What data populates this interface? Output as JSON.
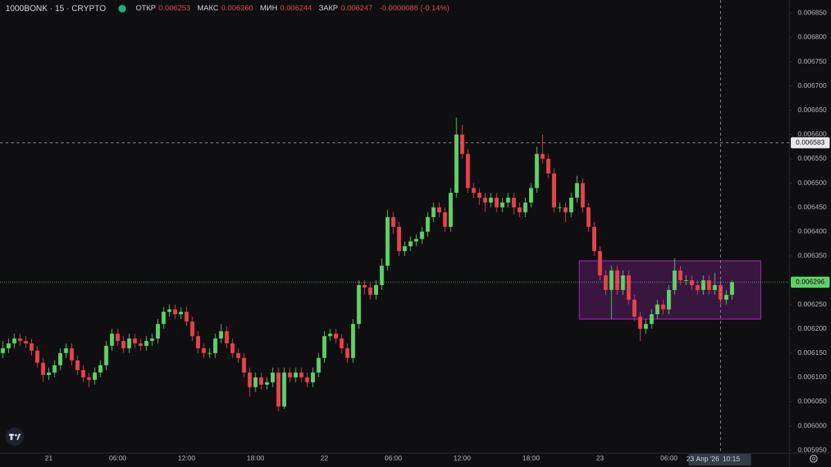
{
  "chart_data": {
    "type": "candlestick",
    "title": "1000BONK · 15 · CRYPTO",
    "ohlc_header": {
      "open_label": "ОТКР",
      "open": "0.006253",
      "high_label": "МАКС",
      "high": "0.006260",
      "low_label": "МИН",
      "low": "0.006244",
      "close_label": "ЗАКР",
      "close": "0.006247",
      "change": "-0.0000086 (-0.14%)"
    },
    "up_color": "#5fd068",
    "down_color": "#e5434b",
    "xlim": [
      -0.5,
      137
    ],
    "ylim": [
      0.005944,
      0.006877
    ],
    "xticks": [
      {
        "value": 8,
        "label": "21"
      },
      {
        "value": 20,
        "label": "06:00"
      },
      {
        "value": 32,
        "label": "12:00"
      },
      {
        "value": 44,
        "label": "18:00"
      },
      {
        "value": 56,
        "label": "22"
      },
      {
        "value": 68,
        "label": "06:00"
      },
      {
        "value": 80,
        "label": "12:00"
      },
      {
        "value": 92,
        "label": "18:00"
      },
      {
        "value": 104,
        "label": "23"
      },
      {
        "value": 116,
        "label": "06:00"
      }
    ],
    "yticks": [
      {
        "value": 0.00595,
        "label": "0.005950"
      },
      {
        "value": 0.006,
        "label": "0.006000"
      },
      {
        "value": 0.00605,
        "label": "0.006050"
      },
      {
        "value": 0.0061,
        "label": "0.006100"
      },
      {
        "value": 0.00615,
        "label": "0.006150"
      },
      {
        "value": 0.0062,
        "label": "0.006200"
      },
      {
        "value": 0.00625,
        "label": "0.006250"
      },
      {
        "value": 0.0063,
        "label": "0.006300"
      },
      {
        "value": 0.00635,
        "label": "0.006350"
      },
      {
        "value": 0.0064,
        "label": "0.006400"
      },
      {
        "value": 0.00645,
        "label": "0.006450"
      },
      {
        "value": 0.0065,
        "label": "0.006500"
      },
      {
        "value": 0.00655,
        "label": "0.006550"
      },
      {
        "value": 0.0066,
        "label": "0.006600"
      },
      {
        "value": 0.00665,
        "label": "0.006650"
      },
      {
        "value": 0.0067,
        "label": "0.006700"
      },
      {
        "value": 0.00675,
        "label": "0.006750"
      },
      {
        "value": 0.0068,
        "label": "0.006800"
      },
      {
        "value": 0.00685,
        "label": "0.006850"
      }
    ],
    "open": [
      0.00615,
      0.00616,
      0.00617,
      0.00618,
      0.006175,
      0.00617,
      0.006155,
      0.00613,
      0.006105,
      0.00611,
      0.006125,
      0.00615,
      0.00616,
      0.006135,
      0.006115,
      0.0061,
      0.006095,
      0.00611,
      0.006125,
      0.006165,
      0.00619,
      0.006175,
      0.00616,
      0.00618,
      0.00617,
      0.006165,
      0.006175,
      0.00618,
      0.00621,
      0.006235,
      0.00624,
      0.00623,
      0.006235,
      0.006215,
      0.006185,
      0.00616,
      0.00615,
      0.00615,
      0.00618,
      0.006195,
      0.00617,
      0.00615,
      0.00614,
      0.00611,
      0.00608,
      0.0061,
      0.006085,
      0.00609,
      0.00611,
      0.00604,
      0.00611,
      0.0061,
      0.00611,
      0.0061,
      0.00609,
      0.00611,
      0.00614,
      0.006185,
      0.00619,
      0.00618,
      0.00616,
      0.00614,
      0.00621,
      0.00629,
      0.006285,
      0.00627,
      0.00629,
      0.00633,
      0.00643,
      0.00641,
      0.00636,
      0.00637,
      0.00638,
      0.006385,
      0.0064,
      0.00643,
      0.00645,
      0.00644,
      0.00641,
      0.00648,
      0.0066,
      0.00656,
      0.00649,
      0.00648,
      0.00647,
      0.00646,
      0.00647,
      0.00645,
      0.00646,
      0.00647,
      0.00645,
      0.00644,
      0.00646,
      0.00649,
      0.00656,
      0.00655,
      0.00652,
      0.00645,
      0.00645,
      0.00644,
      0.00647,
      0.0065,
      0.00645,
      0.00641,
      0.00636,
      0.00631,
      0.00628,
      0.00632,
      0.00628,
      0.00631,
      0.00626,
      0.006225,
      0.0062,
      0.00621,
      0.00623,
      0.00625,
      0.00624,
      0.00628,
      0.00632,
      0.0063,
      0.0063,
      0.00629,
      0.00628,
      0.0063,
      0.00628,
      0.00629,
      0.00626,
      0.00627
    ],
    "high": [
      0.006175,
      0.00618,
      0.00619,
      0.00619,
      0.006185,
      0.00618,
      0.006165,
      0.00614,
      0.00612,
      0.006135,
      0.00616,
      0.00617,
      0.00617,
      0.006145,
      0.006125,
      0.00611,
      0.00612,
      0.006135,
      0.006175,
      0.0062,
      0.0062,
      0.006185,
      0.00619,
      0.00619,
      0.00618,
      0.006185,
      0.00619,
      0.00622,
      0.006245,
      0.00625,
      0.00625,
      0.006245,
      0.006245,
      0.006225,
      0.006195,
      0.00617,
      0.00616,
      0.00619,
      0.00621,
      0.006205,
      0.00618,
      0.00616,
      0.00615,
      0.00612,
      0.00611,
      0.00611,
      0.0061,
      0.00612,
      0.00612,
      0.00612,
      0.00612,
      0.00612,
      0.00612,
      0.00611,
      0.00612,
      0.00615,
      0.006195,
      0.0062,
      0.0062,
      0.00619,
      0.00617,
      0.00622,
      0.0063,
      0.0063,
      0.006295,
      0.0063,
      0.006345,
      0.006445,
      0.00644,
      0.00642,
      0.00638,
      0.00639,
      0.006395,
      0.00641,
      0.00644,
      0.00646,
      0.00646,
      0.00645,
      0.00649,
      0.006635,
      0.00662,
      0.00657,
      0.0065,
      0.00649,
      0.00648,
      0.00648,
      0.00648,
      0.00647,
      0.00648,
      0.00648,
      0.00646,
      0.00647,
      0.0065,
      0.006575,
      0.0066,
      0.00656,
      0.00653,
      0.00646,
      0.00646,
      0.00648,
      0.006515,
      0.00651,
      0.00646,
      0.00642,
      0.00637,
      0.00632,
      0.00633,
      0.00633,
      0.00632,
      0.00632,
      0.00627,
      0.006235,
      0.00622,
      0.00624,
      0.00626,
      0.00626,
      0.00629,
      0.006345,
      0.00633,
      0.00631,
      0.00631,
      0.0063,
      0.00631,
      0.00631,
      0.006315,
      0.0063,
      0.00628,
      0.0063
    ],
    "low": [
      0.00614,
      0.00615,
      0.00616,
      0.006165,
      0.00616,
      0.006145,
      0.00612,
      0.00609,
      0.006095,
      0.0061,
      0.006115,
      0.00614,
      0.006125,
      0.006105,
      0.00609,
      0.00608,
      0.006085,
      0.0061,
      0.006115,
      0.006155,
      0.006165,
      0.00615,
      0.00615,
      0.00616,
      0.006155,
      0.006155,
      0.006165,
      0.00617,
      0.0062,
      0.006225,
      0.00622,
      0.00622,
      0.006205,
      0.006175,
      0.00615,
      0.00614,
      0.00614,
      0.00614,
      0.00617,
      0.00616,
      0.00614,
      0.00613,
      0.0061,
      0.00606,
      0.00607,
      0.006075,
      0.006075,
      0.00608,
      0.00603,
      0.006035,
      0.00609,
      0.00609,
      0.00609,
      0.00608,
      0.00608,
      0.0061,
      0.00613,
      0.006175,
      0.00617,
      0.00615,
      0.00613,
      0.00613,
      0.0062,
      0.00627,
      0.00626,
      0.00626,
      0.00628,
      0.00632,
      0.006395,
      0.00635,
      0.00635,
      0.00636,
      0.00637,
      0.006375,
      0.00639,
      0.00642,
      0.00643,
      0.0064,
      0.0064,
      0.00647,
      0.00655,
      0.00648,
      0.00647,
      0.006455,
      0.00644,
      0.00645,
      0.00644,
      0.00644,
      0.00645,
      0.006435,
      0.00643,
      0.00643,
      0.00645,
      0.00648,
      0.00654,
      0.00651,
      0.00644,
      0.00644,
      0.00642,
      0.00643,
      0.00646,
      0.00644,
      0.0064,
      0.00635,
      0.0063,
      0.00627,
      0.00622,
      0.00627,
      0.00627,
      0.00625,
      0.006215,
      0.006175,
      0.00619,
      0.0062,
      0.00622,
      0.00623,
      0.00623,
      0.00627,
      0.00629,
      0.00629,
      0.00628,
      0.00627,
      0.00627,
      0.00627,
      0.00627,
      0.00625,
      0.00625,
      0.00626
    ],
    "close": [
      0.00616,
      0.00617,
      0.00618,
      0.006175,
      0.00617,
      0.006155,
      0.00613,
      0.006105,
      0.00611,
      0.006125,
      0.00615,
      0.00616,
      0.006135,
      0.006115,
      0.0061,
      0.006095,
      0.00611,
      0.006125,
      0.006165,
      0.00619,
      0.006175,
      0.00616,
      0.00618,
      0.00617,
      0.006165,
      0.006175,
      0.00618,
      0.00621,
      0.006235,
      0.00624,
      0.00623,
      0.006235,
      0.006215,
      0.006185,
      0.00616,
      0.00615,
      0.00615,
      0.00618,
      0.006195,
      0.00617,
      0.00615,
      0.00614,
      0.00611,
      0.00608,
      0.0061,
      0.006085,
      0.00609,
      0.00611,
      0.00604,
      0.00611,
      0.0061,
      0.00611,
      0.0061,
      0.00609,
      0.00611,
      0.00614,
      0.006185,
      0.00619,
      0.00618,
      0.00616,
      0.00614,
      0.00621,
      0.00629,
      0.006285,
      0.00627,
      0.00629,
      0.00633,
      0.00643,
      0.00641,
      0.00636,
      0.00637,
      0.00638,
      0.006385,
      0.0064,
      0.00643,
      0.00645,
      0.00644,
      0.00641,
      0.00648,
      0.0066,
      0.00656,
      0.00649,
      0.00648,
      0.00647,
      0.00646,
      0.00647,
      0.00645,
      0.00646,
      0.00647,
      0.00645,
      0.00644,
      0.00646,
      0.00649,
      0.00656,
      0.00655,
      0.00652,
      0.00645,
      0.00645,
      0.00644,
      0.00647,
      0.0065,
      0.00645,
      0.00641,
      0.00636,
      0.00631,
      0.00628,
      0.00632,
      0.00628,
      0.00631,
      0.00626,
      0.006225,
      0.0062,
      0.00621,
      0.00623,
      0.00625,
      0.00624,
      0.00628,
      0.00632,
      0.0063,
      0.0063,
      0.00629,
      0.00628,
      0.0063,
      0.00628,
      0.00629,
      0.00626,
      0.00627,
      0.006296
    ],
    "box": {
      "from": 100.4,
      "to": 132,
      "top": 0.00634,
      "bottom": 0.00622,
      "color": "#9c27b0"
    },
    "last_price": {
      "value": 0.006296,
      "label": "0.006296"
    },
    "crosshair": {
      "index": 125,
      "price": 0.006583,
      "price_label": "0.006583",
      "date_label": "23 Апр '26",
      "time_label": "10:15"
    }
  }
}
